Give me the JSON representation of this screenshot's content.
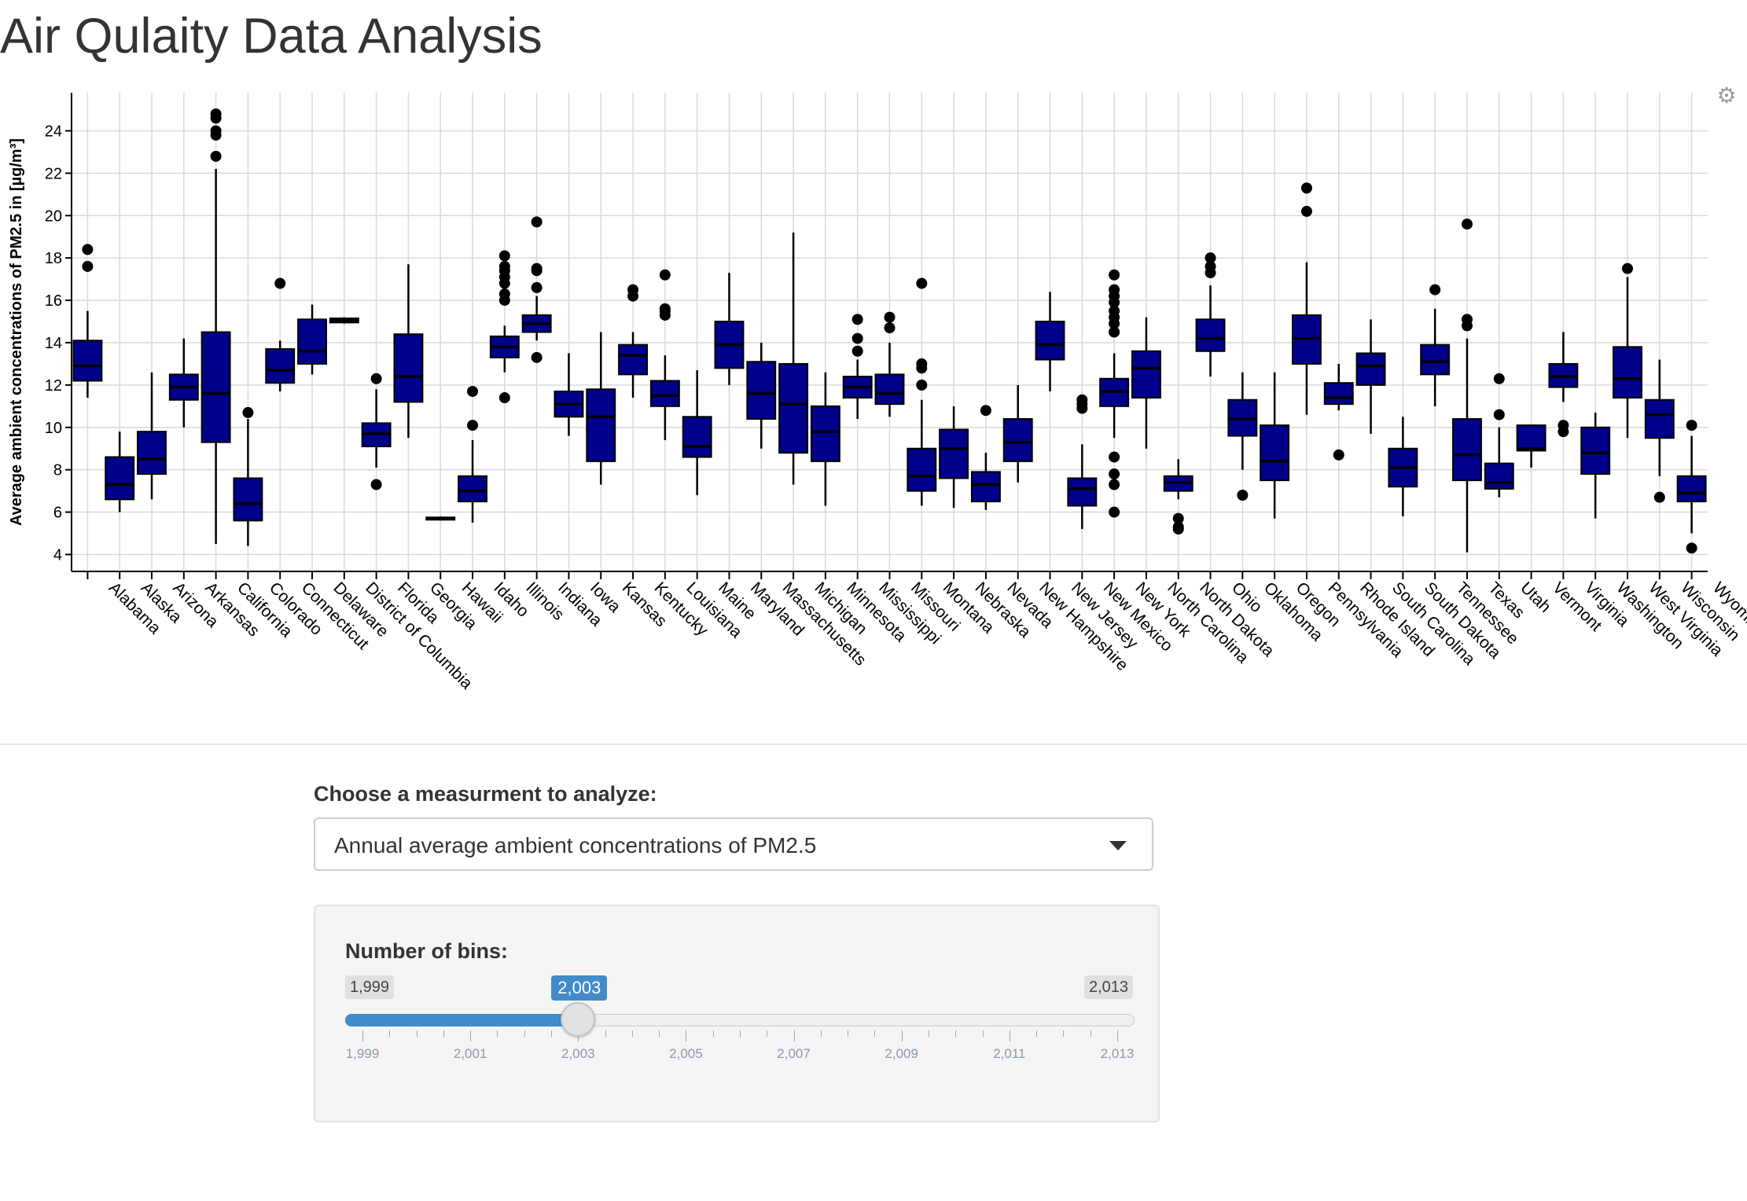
{
  "page": {
    "title": "Air Qulaity Data Analysis"
  },
  "toolbar": {
    "settings_icon": "gear-icon"
  },
  "measurement": {
    "label": "Choose a measurment to analyze:",
    "selected": "Annual average ambient concentrations of PM2.5"
  },
  "bins": {
    "label": "Number of bins:",
    "min": 1999,
    "max": 2013,
    "value": 2003,
    "min_label": "1,999",
    "max_label": "2,013",
    "value_label": "2,003",
    "tick_labels": [
      "1,999",
      "2,001",
      "2,003",
      "2,005",
      "2,007",
      "2,009",
      "2,011",
      "2,013"
    ],
    "accent_color": "#428bca"
  },
  "chart_data": {
    "type": "box",
    "ylabel": "Average ambient concentrations of PM2.5 in [µg/m³]",
    "xlabel": "",
    "ylim": [
      3.2,
      25.8
    ],
    "yticks": [
      4,
      6,
      8,
      10,
      12,
      14,
      16,
      18,
      20,
      22,
      24
    ],
    "grid": true,
    "box_color": "#00008b",
    "categories": [
      "Alabama",
      "Alaska",
      "Arizona",
      "Arkansas",
      "California",
      "Colorado",
      "Connecticut",
      "Delaware",
      "District of Columbia",
      "Florida",
      "Georgia",
      "Hawaii",
      "Idaho",
      "Illinois",
      "Indiana",
      "Iowa",
      "Kansas",
      "Kentucky",
      "Louisiana",
      "Maine",
      "Maryland",
      "Massachusetts",
      "Michigan",
      "Minnesota",
      "Mississippi",
      "Missouri",
      "Montana",
      "Nebraska",
      "Nevada",
      "New Hampshire",
      "New Jersey",
      "New Mexico",
      "New York",
      "North Carolina",
      "North Dakota",
      "Ohio",
      "Oklahoma",
      "Oregon",
      "Pennsylvania",
      "Rhode Island",
      "South Carolina",
      "South Dakota",
      "Tennessee",
      "Texas",
      "Utah",
      "Vermont",
      "Virginia",
      "Washington",
      "West Virginia",
      "Wisconsin",
      "Wyoming"
    ],
    "boxes": [
      {
        "whisker_low": 11.4,
        "q1": 12.2,
        "median": 12.9,
        "q3": 14.1,
        "whisker_high": 15.5,
        "outliers": [
          18.4,
          17.6
        ]
      },
      {
        "whisker_low": 6.0,
        "q1": 6.6,
        "median": 7.3,
        "q3": 8.6,
        "whisker_high": 9.8,
        "outliers": []
      },
      {
        "whisker_low": 6.6,
        "q1": 7.8,
        "median": 8.5,
        "q3": 9.8,
        "whisker_high": 12.6,
        "outliers": []
      },
      {
        "whisker_low": 10.0,
        "q1": 11.3,
        "median": 11.9,
        "q3": 12.5,
        "whisker_high": 14.2,
        "outliers": []
      },
      {
        "whisker_low": 4.5,
        "q1": 9.3,
        "median": 11.6,
        "q3": 14.5,
        "whisker_high": 22.2,
        "outliers": [
          22.8,
          23.8,
          24.0,
          24.6,
          24.8
        ]
      },
      {
        "whisker_low": 4.4,
        "q1": 5.6,
        "median": 6.4,
        "q3": 7.6,
        "whisker_high": 10.4,
        "outliers": [
          10.7
        ]
      },
      {
        "whisker_low": 11.7,
        "q1": 12.1,
        "median": 12.7,
        "q3": 13.7,
        "whisker_high": 14.1,
        "outliers": [
          16.8
        ]
      },
      {
        "whisker_low": 12.5,
        "q1": 13.0,
        "median": 13.6,
        "q3": 15.1,
        "whisker_high": 15.8,
        "outliers": []
      },
      {
        "whisker_low": 14.9,
        "q1": 14.95,
        "median": 15.05,
        "q3": 15.15,
        "whisker_high": 15.2,
        "outliers": []
      },
      {
        "whisker_low": 8.1,
        "q1": 9.1,
        "median": 9.7,
        "q3": 10.2,
        "whisker_high": 11.8,
        "outliers": [
          12.3,
          7.3
        ]
      },
      {
        "whisker_low": 9.5,
        "q1": 11.2,
        "median": 12.4,
        "q3": 14.4,
        "whisker_high": 17.7,
        "outliers": []
      },
      {
        "whisker_low": 5.6,
        "q1": 5.65,
        "median": 5.7,
        "q3": 5.75,
        "whisker_high": 5.8,
        "outliers": []
      },
      {
        "whisker_low": 5.5,
        "q1": 6.5,
        "median": 7.0,
        "q3": 7.7,
        "whisker_high": 9.4,
        "outliers": [
          11.7,
          10.1
        ]
      },
      {
        "whisker_low": 12.6,
        "q1": 13.3,
        "median": 13.8,
        "q3": 14.3,
        "whisker_high": 14.8,
        "outliers": [
          16.0,
          16.3,
          16.8,
          17.1,
          17.4,
          17.6,
          18.1,
          11.4
        ]
      },
      {
        "whisker_low": 14.1,
        "q1": 14.5,
        "median": 14.9,
        "q3": 15.3,
        "whisker_high": 16.2,
        "outliers": [
          19.7,
          17.5,
          17.4,
          16.6,
          13.3
        ]
      },
      {
        "whisker_low": 9.6,
        "q1": 10.5,
        "median": 11.1,
        "q3": 11.7,
        "whisker_high": 13.5,
        "outliers": []
      },
      {
        "whisker_low": 7.3,
        "q1": 8.4,
        "median": 10.5,
        "q3": 11.8,
        "whisker_high": 14.5,
        "outliers": []
      },
      {
        "whisker_low": 11.4,
        "q1": 12.5,
        "median": 13.4,
        "q3": 13.9,
        "whisker_high": 14.5,
        "outliers": [
          16.2,
          16.5
        ]
      },
      {
        "whisker_low": 9.4,
        "q1": 11.0,
        "median": 11.5,
        "q3": 12.2,
        "whisker_high": 13.4,
        "outliers": [
          15.3,
          15.6,
          15.5,
          17.2
        ]
      },
      {
        "whisker_low": 6.8,
        "q1": 8.6,
        "median": 9.1,
        "q3": 10.5,
        "whisker_high": 12.7,
        "outliers": []
      },
      {
        "whisker_low": 12.0,
        "q1": 12.8,
        "median": 13.9,
        "q3": 15.0,
        "whisker_high": 17.3,
        "outliers": []
      },
      {
        "whisker_low": 9.0,
        "q1": 10.4,
        "median": 11.6,
        "q3": 13.1,
        "whisker_high": 14.0,
        "outliers": []
      },
      {
        "whisker_low": 7.3,
        "q1": 8.8,
        "median": 11.1,
        "q3": 13.0,
        "whisker_high": 19.2,
        "outliers": []
      },
      {
        "whisker_low": 6.3,
        "q1": 8.4,
        "median": 9.8,
        "q3": 11.0,
        "whisker_high": 12.6,
        "outliers": []
      },
      {
        "whisker_low": 10.4,
        "q1": 11.4,
        "median": 11.9,
        "q3": 12.4,
        "whisker_high": 13.2,
        "outliers": [
          13.6,
          14.2,
          15.1
        ]
      },
      {
        "whisker_low": 10.5,
        "q1": 11.1,
        "median": 11.6,
        "q3": 12.5,
        "whisker_high": 14.0,
        "outliers": [
          14.7,
          15.2
        ]
      },
      {
        "whisker_low": 6.3,
        "q1": 7.0,
        "median": 7.7,
        "q3": 9.0,
        "whisker_high": 11.3,
        "outliers": [
          16.8,
          13.0,
          12.8,
          12.0
        ]
      },
      {
        "whisker_low": 6.2,
        "q1": 7.6,
        "median": 9.0,
        "q3": 9.9,
        "whisker_high": 11.0,
        "outliers": []
      },
      {
        "whisker_low": 6.1,
        "q1": 6.5,
        "median": 7.3,
        "q3": 7.9,
        "whisker_high": 8.8,
        "outliers": [
          10.8
        ]
      },
      {
        "whisker_low": 7.4,
        "q1": 8.4,
        "median": 9.3,
        "q3": 10.4,
        "whisker_high": 12.0,
        "outliers": []
      },
      {
        "whisker_low": 11.7,
        "q1": 13.2,
        "median": 13.9,
        "q3": 15.0,
        "whisker_high": 16.4,
        "outliers": []
      },
      {
        "whisker_low": 5.2,
        "q1": 6.3,
        "median": 7.1,
        "q3": 7.6,
        "whisker_high": 9.2,
        "outliers": [
          11.3,
          11.1,
          10.9
        ]
      },
      {
        "whisker_low": 9.5,
        "q1": 11.0,
        "median": 11.7,
        "q3": 12.3,
        "whisker_high": 13.5,
        "outliers": [
          17.2,
          16.5,
          16.2,
          15.9,
          15.5,
          15.2,
          14.9,
          14.5,
          8.6,
          7.8,
          7.3,
          6.0
        ]
      },
      {
        "whisker_low": 9.0,
        "q1": 11.4,
        "median": 12.8,
        "q3": 13.6,
        "whisker_high": 15.2,
        "outliers": []
      },
      {
        "whisker_low": 6.6,
        "q1": 7.0,
        "median": 7.4,
        "q3": 7.7,
        "whisker_high": 8.5,
        "outliers": [
          5.7,
          5.3,
          5.2
        ]
      },
      {
        "whisker_low": 12.4,
        "q1": 13.6,
        "median": 14.2,
        "q3": 15.1,
        "whisker_high": 16.7,
        "outliers": [
          18.0,
          17.6,
          17.3
        ]
      },
      {
        "whisker_low": 8.0,
        "q1": 9.6,
        "median": 10.4,
        "q3": 11.3,
        "whisker_high": 12.6,
        "outliers": [
          6.8
        ]
      },
      {
        "whisker_low": 5.7,
        "q1": 7.5,
        "median": 8.4,
        "q3": 10.1,
        "whisker_high": 12.6,
        "outliers": []
      },
      {
        "whisker_low": 10.6,
        "q1": 13.0,
        "median": 14.2,
        "q3": 15.3,
        "whisker_high": 17.8,
        "outliers": [
          21.3,
          20.2
        ]
      },
      {
        "whisker_low": 10.8,
        "q1": 11.1,
        "median": 11.4,
        "q3": 12.1,
        "whisker_high": 13.0,
        "outliers": [
          8.7
        ]
      },
      {
        "whisker_low": 9.7,
        "q1": 12.0,
        "median": 12.9,
        "q3": 13.5,
        "whisker_high": 15.1,
        "outliers": []
      },
      {
        "whisker_low": 5.8,
        "q1": 7.2,
        "median": 8.1,
        "q3": 9.0,
        "whisker_high": 10.5,
        "outliers": []
      },
      {
        "whisker_low": 11.0,
        "q1": 12.5,
        "median": 13.1,
        "q3": 13.9,
        "whisker_high": 15.6,
        "outliers": [
          16.5
        ]
      },
      {
        "whisker_low": 4.1,
        "q1": 7.5,
        "median": 8.7,
        "q3": 10.4,
        "whisker_high": 14.2,
        "outliers": [
          19.6,
          15.1,
          14.8
        ]
      },
      {
        "whisker_low": 6.7,
        "q1": 7.1,
        "median": 7.4,
        "q3": 8.3,
        "whisker_high": 10.0,
        "outliers": [
          12.3,
          10.6
        ]
      },
      {
        "whisker_low": 8.1,
        "q1": 8.9,
        "median": 9.0,
        "q3": 10.1,
        "whisker_high": 10.1,
        "outliers": []
      },
      {
        "whisker_low": 11.2,
        "q1": 11.9,
        "median": 12.4,
        "q3": 13.0,
        "whisker_high": 14.5,
        "outliers": [
          10.1,
          9.8
        ]
      },
      {
        "whisker_low": 5.7,
        "q1": 7.8,
        "median": 8.8,
        "q3": 10.0,
        "whisker_high": 10.7,
        "outliers": []
      },
      {
        "whisker_low": 9.5,
        "q1": 11.4,
        "median": 12.3,
        "q3": 13.8,
        "whisker_high": 17.1,
        "outliers": [
          17.5
        ]
      },
      {
        "whisker_low": 7.7,
        "q1": 9.5,
        "median": 10.6,
        "q3": 11.3,
        "whisker_high": 13.2,
        "outliers": [
          6.7
        ]
      },
      {
        "whisker_low": 5.0,
        "q1": 6.5,
        "median": 6.9,
        "q3": 7.7,
        "whisker_high": 9.6,
        "outliers": [
          10.1,
          4.3
        ]
      }
    ]
  }
}
